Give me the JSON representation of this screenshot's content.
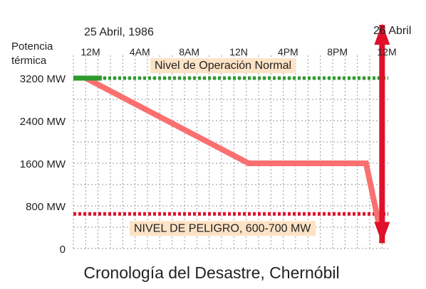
{
  "chart_data": {
    "type": "line",
    "title": "Cronología del Desastre, Chernóbil",
    "date_start_label": "25 Abril, 1986",
    "date_end_label": "26 Abril",
    "ylabel": "Potencia\ntérmica",
    "x_tick_labels": [
      "12M",
      "4AM",
      "8AM",
      "12N",
      "4PM",
      "8PM",
      "12M"
    ],
    "x_tick_hours": [
      0,
      4,
      8,
      12,
      16,
      20,
      24
    ],
    "y_tick_labels": [
      "0",
      "800 MW",
      "1600 MW",
      "2400 MW",
      "3200 MW"
    ],
    "y_tick_values": [
      0,
      800,
      1600,
      2400,
      3200
    ],
    "ylim": [
      0,
      3200
    ],
    "xlim_hours": [
      0,
      25.5
    ],
    "grid": true,
    "reference_lines": [
      {
        "name": "Nivel de Operación Normal",
        "value": 3200,
        "color": "#2e9a2e"
      },
      {
        "name": "NIVEL DE PELIGRO, 600-700 MW",
        "value": 650,
        "color": "#e0102a"
      }
    ],
    "series": [
      {
        "color": "#fa7070",
        "points": [
          {
            "hour": 1.0,
            "mw": 3200
          },
          {
            "hour": 14.2,
            "mw": 1600
          },
          {
            "hour": 23.7,
            "mw": 1600
          },
          {
            "hour": 24.8,
            "mw": 400
          }
        ]
      },
      {
        "color": "#2e9a2e",
        "points": [
          {
            "hour": 0.0,
            "mw": 3200
          },
          {
            "hour": 2.3,
            "mw": 3200
          }
        ]
      },
      {
        "color": "#e0102a",
        "points": [
          {
            "hour": 25.0,
            "mw": 100
          },
          {
            "hour": 25.0,
            "mw": 4200
          }
        ]
      }
    ]
  },
  "colors": {
    "grid": "#9a9a9a",
    "label_bg": "#fde3c6",
    "text": "#222222"
  }
}
